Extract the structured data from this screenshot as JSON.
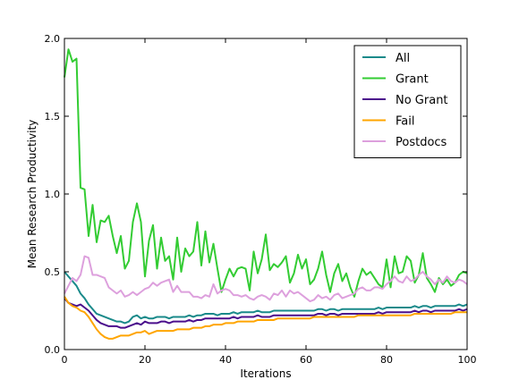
{
  "chart_data": {
    "type": "line",
    "title": "",
    "xlabel": "Iterations",
    "ylabel": "Mean Research Productivity",
    "xlim": [
      0,
      100
    ],
    "ylim": [
      0.0,
      2.0
    ],
    "xticks": [
      0,
      20,
      40,
      60,
      80,
      100
    ],
    "xtick_labels": [
      "0",
      "20",
      "40",
      "60",
      "80",
      "100"
    ],
    "yticks": [
      0.0,
      0.5,
      1.0,
      1.5,
      2.0
    ],
    "ytick_labels": [
      "0.0",
      "0.5",
      "1.0",
      "1.5",
      "2.0"
    ],
    "grid": false,
    "legend_position": "top-right",
    "x": [
      0,
      1,
      2,
      3,
      4,
      5,
      6,
      7,
      8,
      9,
      10,
      11,
      12,
      13,
      14,
      15,
      16,
      17,
      18,
      19,
      20,
      21,
      22,
      23,
      24,
      25,
      26,
      27,
      28,
      29,
      30,
      31,
      32,
      33,
      34,
      35,
      36,
      37,
      38,
      39,
      40,
      41,
      42,
      43,
      44,
      45,
      46,
      47,
      48,
      49,
      50,
      51,
      52,
      53,
      54,
      55,
      56,
      57,
      58,
      59,
      60,
      61,
      62,
      63,
      64,
      65,
      66,
      67,
      68,
      69,
      70,
      71,
      72,
      73,
      74,
      75,
      76,
      77,
      78,
      79,
      80,
      81,
      82,
      83,
      84,
      85,
      86,
      87,
      88,
      89,
      90,
      91,
      92,
      93,
      94,
      95,
      96,
      97,
      98,
      99,
      100
    ],
    "series": [
      {
        "name": "All",
        "color": "#1a8a8a",
        "values": [
          0.5,
          0.47,
          0.44,
          0.41,
          0.36,
          0.33,
          0.29,
          0.26,
          0.23,
          0.22,
          0.21,
          0.2,
          0.19,
          0.18,
          0.18,
          0.17,
          0.18,
          0.21,
          0.22,
          0.2,
          0.21,
          0.2,
          0.2,
          0.21,
          0.21,
          0.21,
          0.2,
          0.21,
          0.21,
          0.21,
          0.21,
          0.22,
          0.21,
          0.22,
          0.22,
          0.23,
          0.23,
          0.23,
          0.22,
          0.23,
          0.23,
          0.23,
          0.24,
          0.23,
          0.24,
          0.24,
          0.24,
          0.24,
          0.25,
          0.24,
          0.24,
          0.24,
          0.25,
          0.25,
          0.25,
          0.25,
          0.25,
          0.25,
          0.25,
          0.25,
          0.25,
          0.25,
          0.25,
          0.26,
          0.26,
          0.25,
          0.26,
          0.26,
          0.25,
          0.26,
          0.26,
          0.26,
          0.26,
          0.26,
          0.26,
          0.26,
          0.26,
          0.26,
          0.27,
          0.26,
          0.27,
          0.27,
          0.27,
          0.27,
          0.27,
          0.27,
          0.27,
          0.28,
          0.27,
          0.28,
          0.28,
          0.27,
          0.28,
          0.28,
          0.28,
          0.28,
          0.28,
          0.28,
          0.29,
          0.28,
          0.29
        ]
      },
      {
        "name": "Grant",
        "color": "#33cc33",
        "values": [
          1.75,
          1.93,
          1.85,
          1.87,
          1.04,
          1.03,
          0.73,
          0.93,
          0.69,
          0.83,
          0.82,
          0.86,
          0.73,
          0.62,
          0.73,
          0.52,
          0.57,
          0.82,
          0.94,
          0.82,
          0.47,
          0.7,
          0.8,
          0.52,
          0.72,
          0.57,
          0.6,
          0.45,
          0.72,
          0.5,
          0.65,
          0.6,
          0.63,
          0.82,
          0.54,
          0.76,
          0.56,
          0.68,
          0.52,
          0.37,
          0.45,
          0.52,
          0.47,
          0.52,
          0.53,
          0.52,
          0.38,
          0.63,
          0.49,
          0.58,
          0.74,
          0.51,
          0.55,
          0.53,
          0.56,
          0.6,
          0.43,
          0.49,
          0.61,
          0.52,
          0.58,
          0.42,
          0.45,
          0.52,
          0.63,
          0.48,
          0.37,
          0.49,
          0.55,
          0.44,
          0.49,
          0.4,
          0.34,
          0.44,
          0.52,
          0.48,
          0.5,
          0.46,
          0.42,
          0.4,
          0.58,
          0.4,
          0.6,
          0.49,
          0.5,
          0.6,
          0.57,
          0.43,
          0.48,
          0.62,
          0.46,
          0.42,
          0.37,
          0.46,
          0.42,
          0.45,
          0.41,
          0.43,
          0.48,
          0.5,
          0.49
        ]
      },
      {
        "name": "No Grant",
        "color": "#4b0e8c",
        "values": [
          0.33,
          0.3,
          0.29,
          0.28,
          0.29,
          0.27,
          0.25,
          0.22,
          0.19,
          0.17,
          0.16,
          0.15,
          0.15,
          0.15,
          0.14,
          0.14,
          0.15,
          0.16,
          0.17,
          0.16,
          0.18,
          0.17,
          0.17,
          0.17,
          0.18,
          0.18,
          0.17,
          0.18,
          0.18,
          0.18,
          0.18,
          0.19,
          0.18,
          0.19,
          0.19,
          0.2,
          0.2,
          0.2,
          0.2,
          0.2,
          0.2,
          0.2,
          0.21,
          0.2,
          0.21,
          0.21,
          0.21,
          0.21,
          0.22,
          0.21,
          0.21,
          0.21,
          0.22,
          0.22,
          0.22,
          0.22,
          0.22,
          0.22,
          0.22,
          0.22,
          0.22,
          0.22,
          0.22,
          0.23,
          0.23,
          0.22,
          0.23,
          0.23,
          0.22,
          0.23,
          0.23,
          0.23,
          0.23,
          0.23,
          0.23,
          0.23,
          0.23,
          0.23,
          0.24,
          0.23,
          0.24,
          0.24,
          0.24,
          0.24,
          0.24,
          0.24,
          0.24,
          0.25,
          0.24,
          0.25,
          0.25,
          0.24,
          0.25,
          0.25,
          0.25,
          0.25,
          0.25,
          0.25,
          0.26,
          0.25,
          0.26
        ]
      },
      {
        "name": "Fail",
        "color": "#ffa500",
        "values": [
          0.34,
          0.3,
          0.28,
          0.27,
          0.25,
          0.24,
          0.21,
          0.17,
          0.13,
          0.1,
          0.08,
          0.07,
          0.07,
          0.08,
          0.09,
          0.09,
          0.09,
          0.1,
          0.11,
          0.11,
          0.12,
          0.1,
          0.11,
          0.12,
          0.12,
          0.12,
          0.12,
          0.12,
          0.13,
          0.13,
          0.13,
          0.13,
          0.14,
          0.14,
          0.14,
          0.15,
          0.15,
          0.16,
          0.16,
          0.16,
          0.17,
          0.17,
          0.17,
          0.18,
          0.18,
          0.18,
          0.18,
          0.18,
          0.19,
          0.19,
          0.19,
          0.19,
          0.19,
          0.2,
          0.2,
          0.2,
          0.2,
          0.2,
          0.2,
          0.2,
          0.2,
          0.2,
          0.21,
          0.21,
          0.21,
          0.21,
          0.21,
          0.21,
          0.21,
          0.21,
          0.21,
          0.21,
          0.21,
          0.22,
          0.22,
          0.22,
          0.22,
          0.22,
          0.22,
          0.22,
          0.22,
          0.22,
          0.22,
          0.22,
          0.22,
          0.22,
          0.22,
          0.23,
          0.23,
          0.23,
          0.23,
          0.23,
          0.23,
          0.23,
          0.23,
          0.23,
          0.23,
          0.24,
          0.24,
          0.24,
          0.24
        ]
      },
      {
        "name": "Postdocs",
        "color": "#dda0dd",
        "values": [
          0.36,
          0.41,
          0.46,
          0.44,
          0.48,
          0.6,
          0.59,
          0.48,
          0.48,
          0.47,
          0.46,
          0.4,
          0.38,
          0.36,
          0.38,
          0.34,
          0.35,
          0.37,
          0.35,
          0.37,
          0.39,
          0.4,
          0.43,
          0.41,
          0.43,
          0.44,
          0.45,
          0.37,
          0.41,
          0.37,
          0.37,
          0.37,
          0.34,
          0.34,
          0.33,
          0.35,
          0.34,
          0.42,
          0.36,
          0.38,
          0.39,
          0.38,
          0.35,
          0.35,
          0.34,
          0.35,
          0.33,
          0.32,
          0.34,
          0.35,
          0.34,
          0.32,
          0.36,
          0.35,
          0.38,
          0.34,
          0.38,
          0.36,
          0.37,
          0.35,
          0.33,
          0.31,
          0.32,
          0.35,
          0.33,
          0.34,
          0.32,
          0.35,
          0.36,
          0.33,
          0.34,
          0.35,
          0.36,
          0.39,
          0.4,
          0.38,
          0.38,
          0.4,
          0.4,
          0.39,
          0.42,
          0.44,
          0.47,
          0.44,
          0.43,
          0.47,
          0.44,
          0.45,
          0.48,
          0.5,
          0.47,
          0.45,
          0.42,
          0.45,
          0.43,
          0.47,
          0.44,
          0.43,
          0.45,
          0.44,
          0.42
        ]
      }
    ]
  }
}
